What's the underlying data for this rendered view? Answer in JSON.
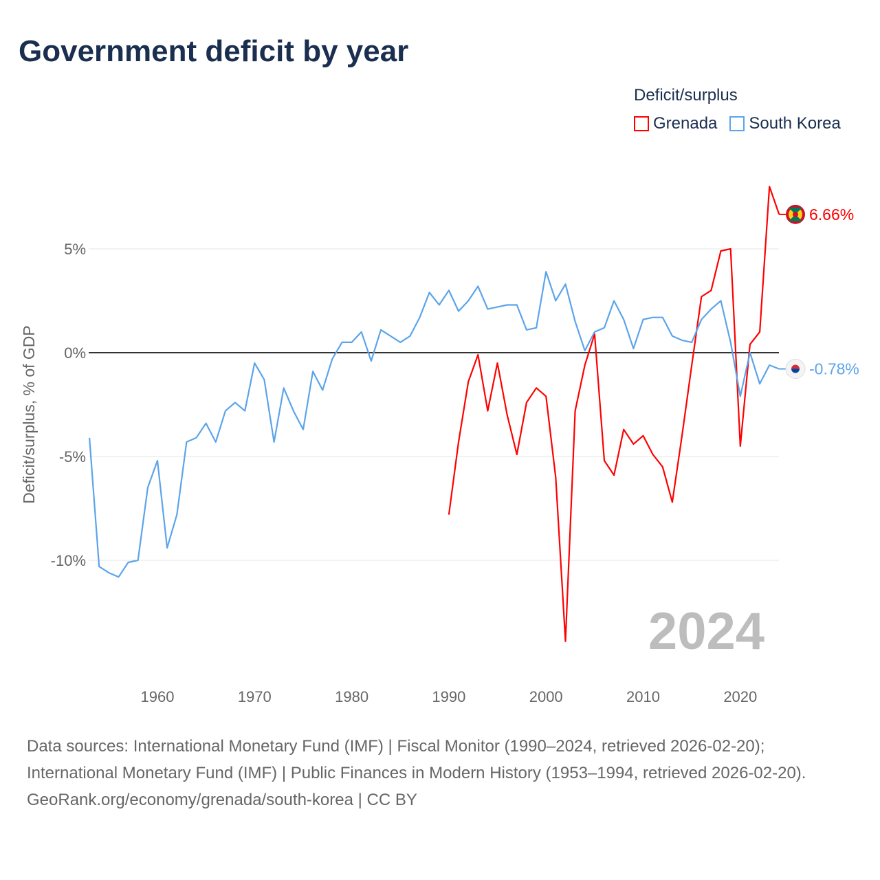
{
  "title": "Government deficit by year",
  "legend": {
    "title": "Deficit/surplus",
    "items": [
      {
        "label": "Grenada",
        "color": "#ff0000"
      },
      {
        "label": "South Korea",
        "color": "#5ba4ea"
      }
    ]
  },
  "watermark_year": "2024",
  "sources": {
    "line1": "Data sources: International Monetary Fund (IMF) | Fiscal Monitor (1990–2024, retrieved 2026-02-20);",
    "line2": "International Monetary Fund (IMF) | Public Finances in Modern History (1953–1994, retrieved 2026-02-20).",
    "line3": "GeoRank.org/economy/grenada/south-korea | CC BY"
  },
  "chart_data": {
    "type": "line",
    "title": "Government deficit by year",
    "xlabel": "",
    "ylabel": "Deficit/surplus, % of GDP",
    "xlim": [
      1953,
      2024
    ],
    "ylim": [
      -15.5,
      8.5
    ],
    "xticks": [
      1960,
      1970,
      1980,
      1990,
      2000,
      2010,
      2020
    ],
    "yticks": [
      {
        "v": 5,
        "label": "5%"
      },
      {
        "v": 0,
        "label": "0%"
      },
      {
        "v": -5,
        "label": "-5%"
      },
      {
        "v": -10,
        "label": "-10%"
      }
    ],
    "series": [
      {
        "name": "Grenada",
        "color": "#ff0000",
        "end_label": "6.66%",
        "start": 1990,
        "values": [
          -7.8,
          -4.3,
          -1.4,
          -0.1,
          -2.8,
          -0.5,
          -3.0,
          -4.9,
          -2.4,
          -1.7,
          -2.1,
          -6.0,
          -13.9,
          -2.8,
          -0.6,
          0.9,
          -5.2,
          -5.9,
          -3.7,
          -4.4,
          -4.0,
          -4.9,
          -5.5,
          -7.2,
          -4.0,
          -0.6,
          2.7,
          3.0,
          4.9,
          5.0,
          -4.5,
          0.4,
          1.0,
          8.0,
          6.66
        ]
      },
      {
        "name": "South Korea",
        "color": "#5ba4ea",
        "end_label": "-0.78%",
        "start": 1953,
        "values": [
          -4.1,
          -10.3,
          -10.6,
          -10.8,
          -10.1,
          -10.0,
          -6.5,
          -5.2,
          -9.4,
          -7.8,
          -4.3,
          -4.1,
          -3.4,
          -4.3,
          -2.8,
          -2.4,
          -2.8,
          -0.5,
          -1.3,
          -4.3,
          -1.7,
          -2.8,
          -3.7,
          -0.9,
          -1.8,
          -0.3,
          0.5,
          0.5,
          1.0,
          -0.4,
          1.1,
          0.8,
          0.5,
          0.8,
          1.7,
          2.9,
          2.3,
          3.0,
          2.0,
          2.5,
          3.2,
          2.1,
          2.2,
          2.3,
          2.3,
          1.1,
          1.2,
          3.9,
          2.5,
          3.3,
          1.5,
          0.1,
          1.0,
          1.2,
          2.5,
          1.6,
          0.2,
          1.6,
          1.7,
          1.7,
          0.8,
          0.6,
          0.5,
          1.6,
          2.1,
          2.5,
          0.5,
          -2.1,
          0.0,
          -1.5,
          -0.6,
          -0.78
        ]
      }
    ]
  }
}
